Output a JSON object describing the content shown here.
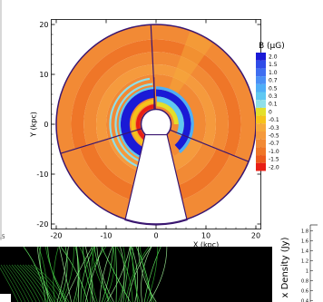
{
  "main_chart": {
    "type": "heatmap",
    "title": "",
    "xlabel": "X (kpc)",
    "ylabel": "Y (kpc)",
    "xlim": [
      -21,
      21
    ],
    "ylim": [
      -21,
      21
    ],
    "x_ticks": [
      -20,
      -10,
      0,
      10,
      20
    ],
    "y_ticks": [
      -20,
      -10,
      0,
      10,
      20
    ],
    "x_tick_labels": [
      "-20",
      "-10",
      "0",
      "10",
      "20"
    ],
    "y_tick_labels": [
      "-20",
      "-10",
      "0",
      "10",
      "20"
    ],
    "outer_radius": 20,
    "inner_radius": 3,
    "sector_boundaries_deg": [
      93,
      197,
      338
    ],
    "colorbar": {
      "title": "B (μG)",
      "labels": [
        "2.0",
        "1.5",
        "1.0",
        "0.7",
        "0.5",
        "0.3",
        "0.1",
        "0",
        "-0.1",
        "-0.3",
        "-0.5",
        "-0.7",
        "-1.0",
        "-1.5",
        "-2.0"
      ],
      "colors": [
        "#1a1ad6",
        "#2f4ce8",
        "#3f6ef0",
        "#4a8ff5",
        "#4faef7",
        "#5fc8f2",
        "#8fdfe8",
        "#e3df2a",
        "#f6c21a",
        "#f6a93a",
        "#f59a3d",
        "#f28a35",
        "#ef7628",
        "#ec5a1d",
        "#e81f16"
      ]
    }
  },
  "corner_chart": {
    "type": "line",
    "ylabel": "x Density (Jy)",
    "y_ticks": [
      1.8,
      1.6,
      1.4,
      1.2,
      1,
      0.8,
      0.6,
      0.4
    ],
    "y_tick_labels": [
      "1.8",
      "1.6",
      "1.4",
      "1.2",
      "1",
      "0.8",
      "0.6",
      "0.4"
    ],
    "ylim": [
      0.3,
      1.85
    ]
  },
  "left_panel": {
    "corner_label": ".5"
  }
}
